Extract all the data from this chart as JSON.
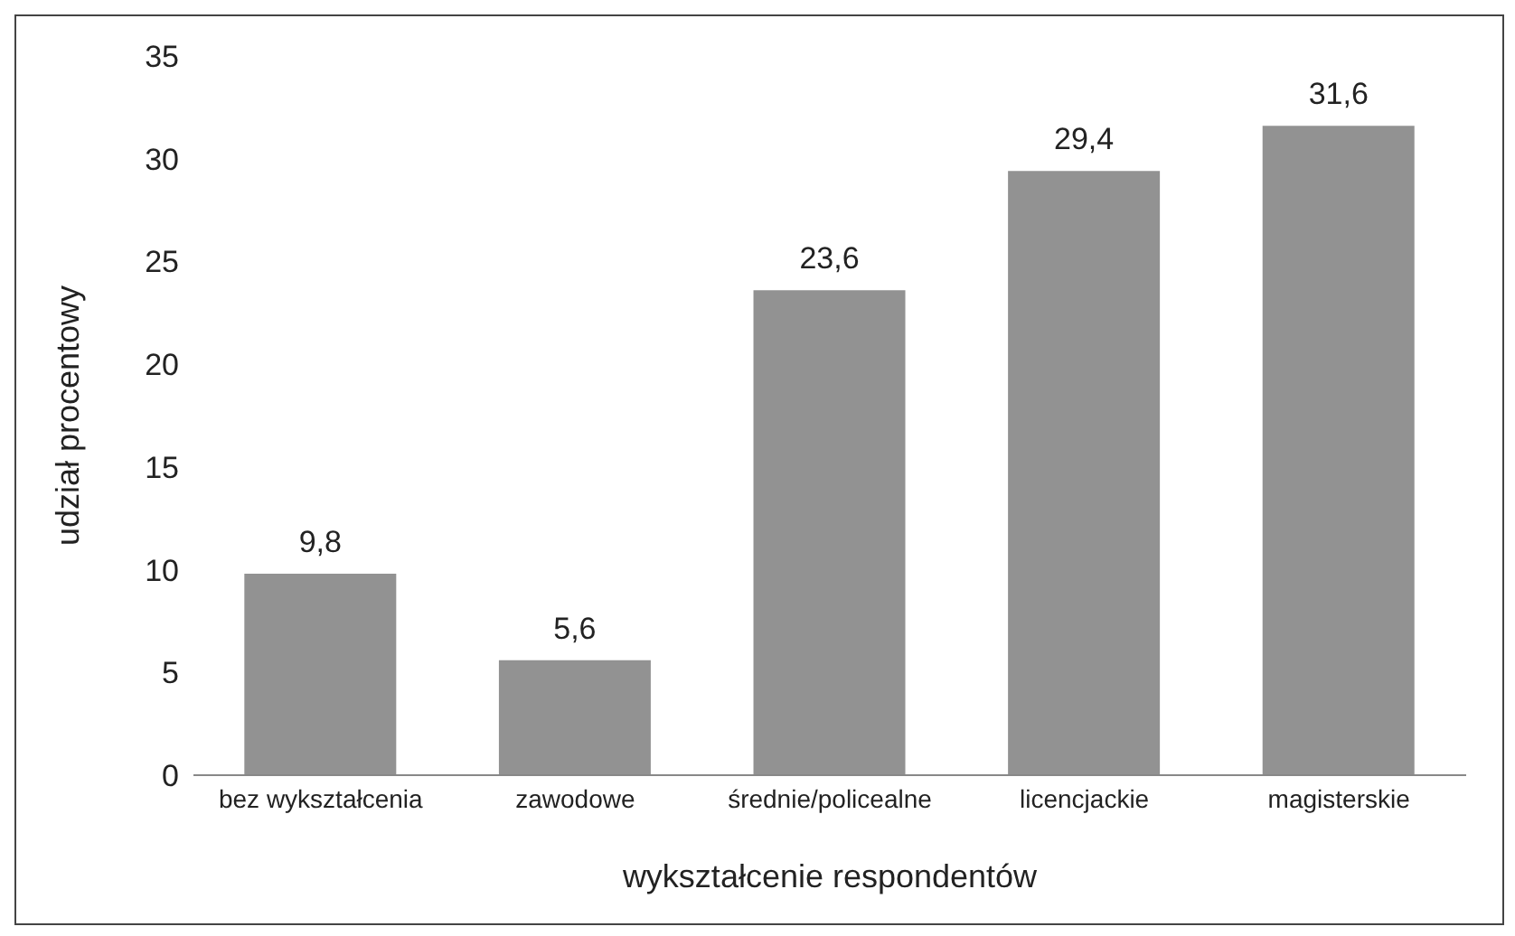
{
  "chart_data": {
    "type": "bar",
    "xlabel": "wykształcenie respondentów",
    "ylabel": "udział procentowy",
    "categories": [
      "bez wykształcenia",
      "zawodowe",
      "średnie/policealne",
      "licencjackie",
      "magisterskie"
    ],
    "values": [
      9.8,
      5.6,
      23.6,
      29.4,
      31.6
    ],
    "value_labels": [
      "9,8",
      "5,6",
      "23,6",
      "29,4",
      "31,6"
    ],
    "color": "#929292",
    "ylim": [
      0,
      35
    ],
    "yticks": [
      0,
      5,
      10,
      15,
      20,
      25,
      30,
      35
    ],
    "grid": false,
    "legend": false
  }
}
